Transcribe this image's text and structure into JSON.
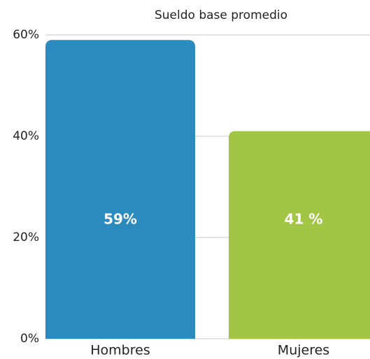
{
  "chart_data": {
    "type": "bar",
    "title": "Sueldo base promedio",
    "categories": [
      "Hombres",
      "Mujeres"
    ],
    "values": [
      59,
      41
    ],
    "value_labels": [
      "59%",
      "41 %"
    ],
    "colors": [
      "#2b8bbf",
      "#a2c545"
    ],
    "ylim": [
      0,
      60
    ],
    "yticks": [
      {
        "value": 0,
        "label": "0%"
      },
      {
        "value": 20,
        "label": "20%"
      },
      {
        "value": 40,
        "label": "40%"
      },
      {
        "value": 60,
        "label": "60%"
      }
    ],
    "grid": true
  }
}
